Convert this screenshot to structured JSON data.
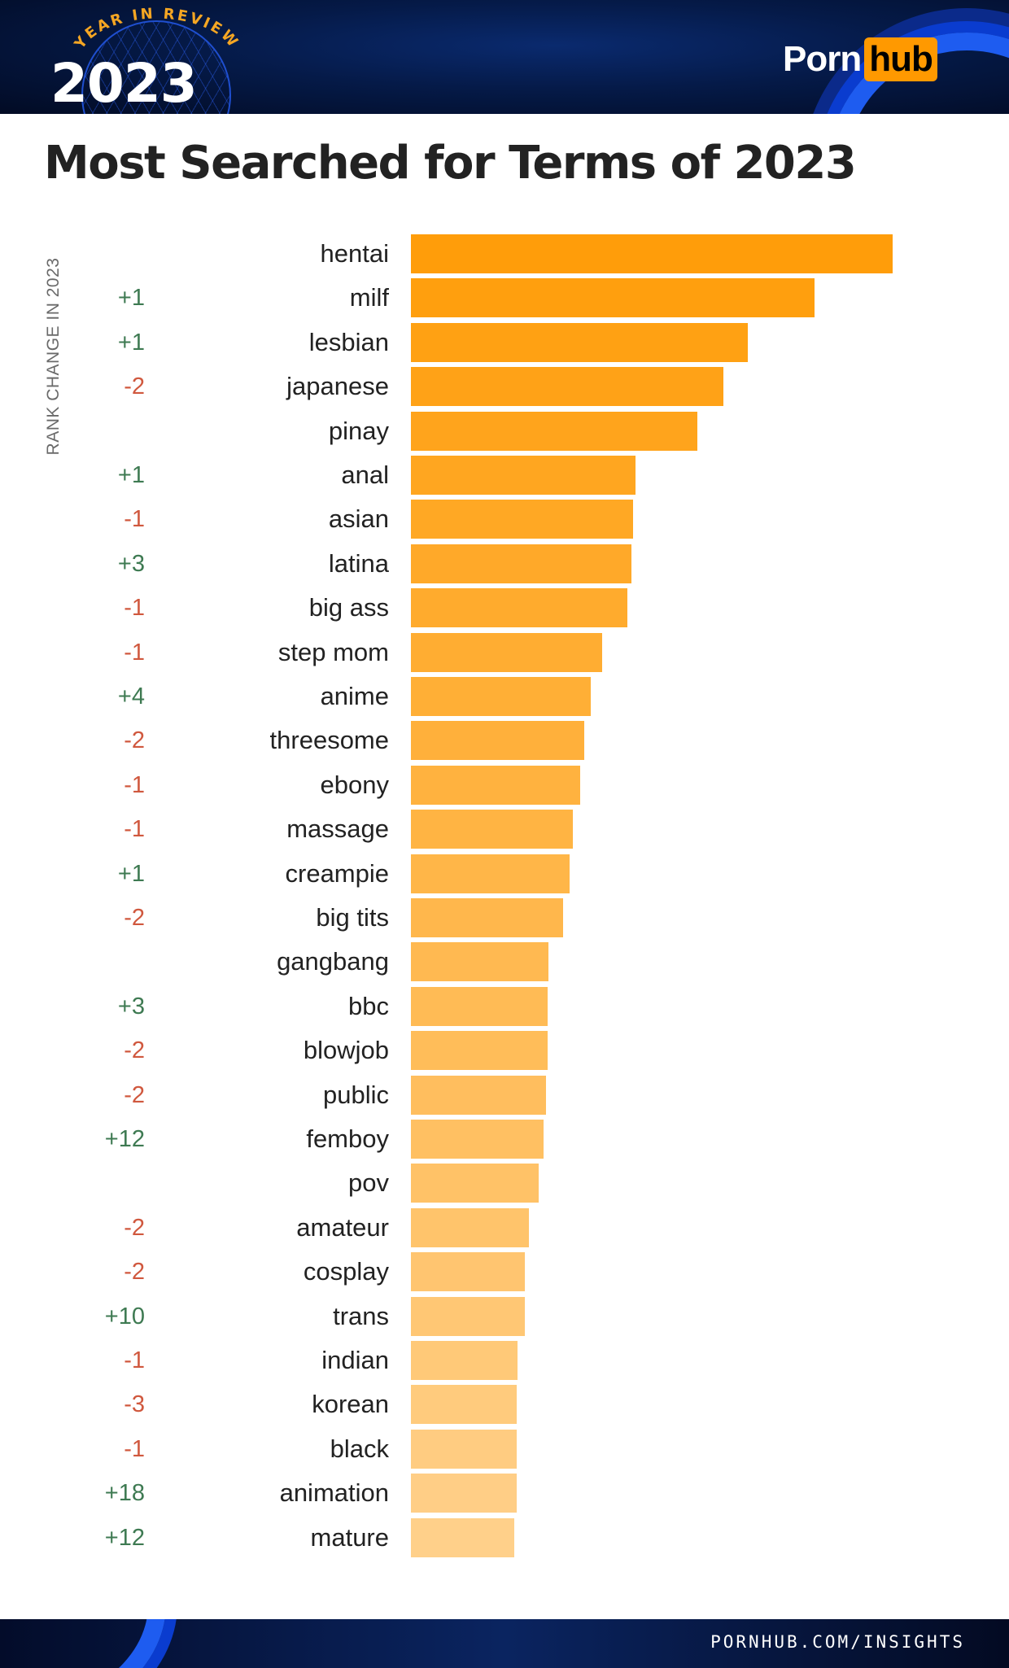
{
  "header": {
    "badge_top": "YEAR IN REVIEW",
    "badge_year": "2023",
    "logo_part1": "Porn",
    "logo_part2": "hub"
  },
  "colors": {
    "bar_top": "#FF9D0A",
    "bar_bottom": "#FFD08A",
    "positive": "#3e7a52",
    "negative": "#d0583e",
    "header_bg": "#051a48",
    "logo_accent": "#ff9900"
  },
  "chart_data": {
    "type": "bar",
    "orientation": "horizontal",
    "title": "Most Searched for Terms of 2023",
    "side_label": "RANK CHANGE IN 2023",
    "categories": [
      "hentai",
      "milf",
      "lesbian",
      "japanese",
      "pinay",
      "anal",
      "asian",
      "latina",
      "big ass",
      "step mom",
      "anime",
      "threesome",
      "ebony",
      "massage",
      "creampie",
      "big tits",
      "gangbang",
      "bbc",
      "blowjob",
      "public",
      "femboy",
      "pov",
      "amateur",
      "cosplay",
      "trans",
      "indian",
      "korean",
      "black",
      "animation",
      "mature"
    ],
    "rank_change": [
      "",
      "+1",
      "+1",
      "-2",
      "",
      "+1",
      "-1",
      "+3",
      "-1",
      "-1",
      "+4",
      "-2",
      "-1",
      "-1",
      "+1",
      "-2",
      "",
      "+3",
      "-2",
      "-2",
      "+12",
      "",
      "-2",
      "-2",
      "+10",
      "-1",
      "-3",
      "-1",
      "+18",
      "+12"
    ],
    "values": [
      100,
      83.7,
      70,
      64.9,
      59.4,
      46.6,
      46.1,
      45.7,
      45,
      39.7,
      37.3,
      36,
      35.1,
      33.6,
      32.9,
      31.6,
      28.5,
      28.3,
      28.3,
      28,
      27.6,
      26.5,
      24.5,
      23.6,
      23.6,
      22.1,
      21.9,
      21.9,
      21.9,
      21.4
    ],
    "value_note": "",
    "xlim": [
      0,
      100
    ],
    "grid": false,
    "legend": "none"
  },
  "footer": {
    "url": "PORNHUB.COM/INSIGHTS"
  }
}
